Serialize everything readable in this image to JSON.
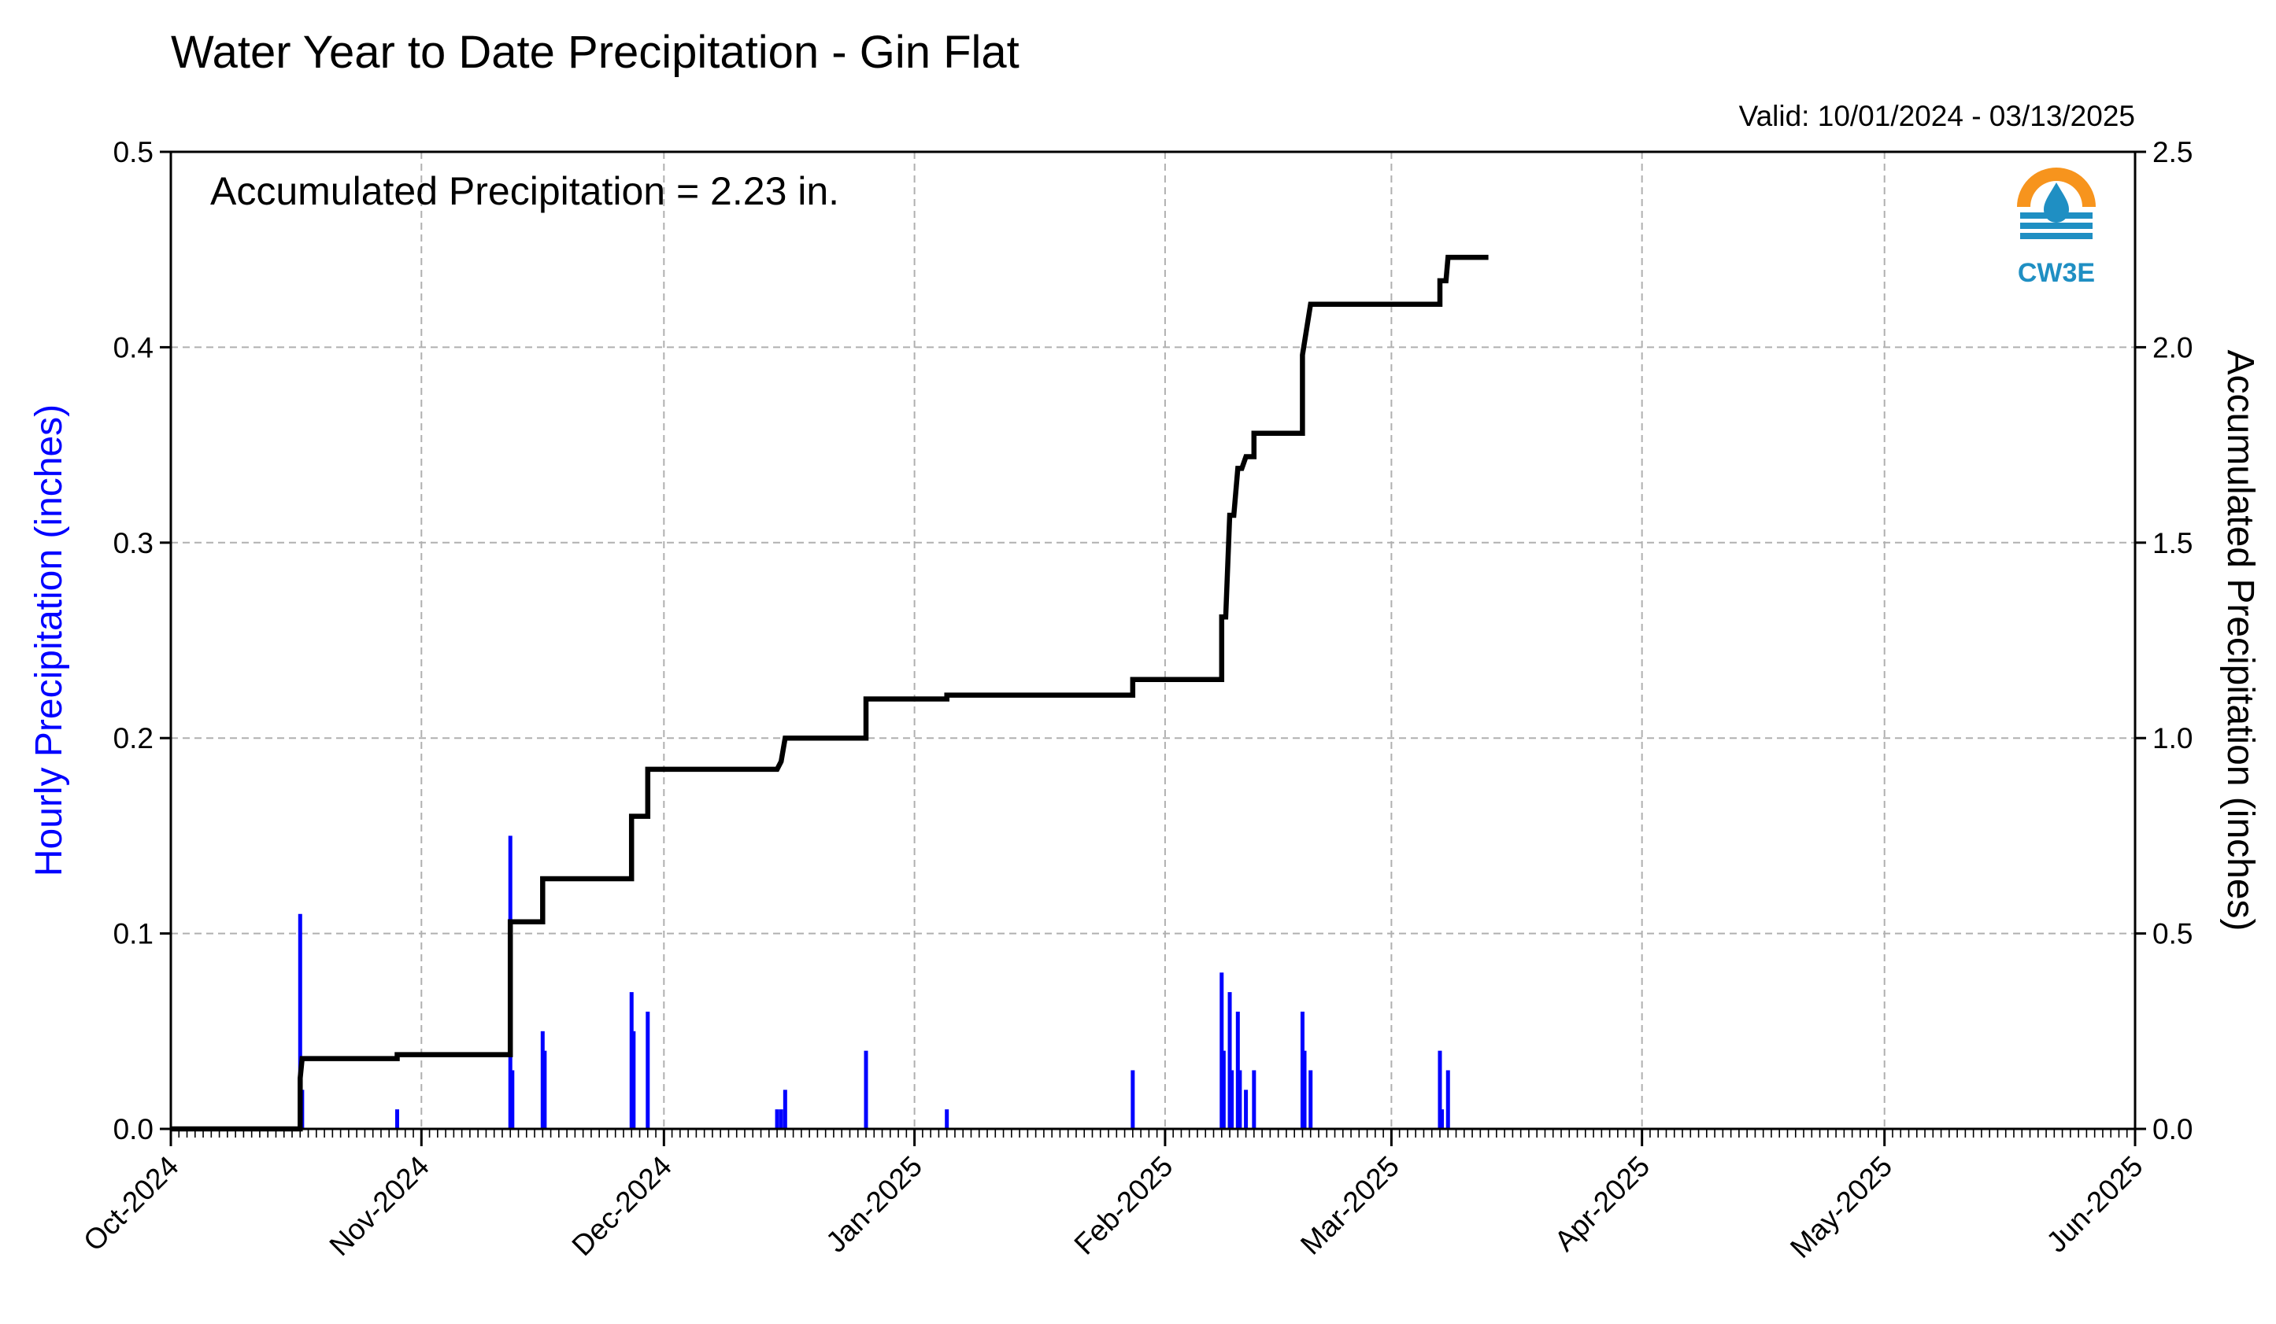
{
  "chart_data": {
    "type": "bar+line",
    "title": "Water Year to Date Precipitation - Gin Flat",
    "subtitle": "Valid: 10/01/2024 - 03/13/2025",
    "annotation": "Accumulated Precipitation = 2.23 in.",
    "logo_text": "CW3E",
    "ylabel_left": "Hourly Precipitation (inches)",
    "ylabel_right": "Accumulated Precipitation (inches)",
    "xlim": [
      "2024-10-01",
      "2025-06-01"
    ],
    "ylim_left": [
      0,
      0.5
    ],
    "ylim_right": [
      0,
      2.5
    ],
    "grid": true,
    "x_ticks": [
      "2024-10-01",
      "2024-11-01",
      "2024-12-01",
      "2025-01-01",
      "2025-02-01",
      "2025-03-01",
      "2025-04-01",
      "2025-05-01",
      "2025-06-01"
    ],
    "x_tick_labels": [
      "Oct-2024",
      "Nov-2024",
      "Dec-2024",
      "Jan-2025",
      "Feb-2025",
      "Mar-2025",
      "Apr-2025",
      "May-2025",
      "Jun-2025"
    ],
    "y_ticks_left": [
      "0.0",
      "0.1",
      "0.2",
      "0.3",
      "0.4",
      "0.5"
    ],
    "y_ticks_right": [
      "0.0",
      "0.5",
      "1.0",
      "1.5",
      "2.0",
      "2.5"
    ],
    "colors": {
      "hourly": "#0000ff",
      "accumulated": "#000000",
      "left_axis_label": "#0000ff"
    },
    "series": [
      {
        "name": "Hourly Precipitation",
        "kind": "bar",
        "axis": "left",
        "points": [
          [
            "2024-10-17",
            0.11
          ],
          [
            "2024-10-17T06",
            0.02
          ],
          [
            "2024-10-29",
            0.01
          ],
          [
            "2024-11-12",
            0.15
          ],
          [
            "2024-11-12T06",
            0.03
          ],
          [
            "2024-11-16",
            0.05
          ],
          [
            "2024-11-16T06",
            0.04
          ],
          [
            "2024-11-27",
            0.07
          ],
          [
            "2024-11-27T06",
            0.05
          ],
          [
            "2024-11-29",
            0.06
          ],
          [
            "2024-12-15",
            0.01
          ],
          [
            "2024-12-15T12",
            0.01
          ],
          [
            "2024-12-16",
            0.02
          ],
          [
            "2024-12-26",
            0.04
          ],
          [
            "2025-01-05",
            0.01
          ],
          [
            "2025-01-28",
            0.03
          ],
          [
            "2025-02-08",
            0.08
          ],
          [
            "2025-02-08T06",
            0.04
          ],
          [
            "2025-02-09",
            0.07
          ],
          [
            "2025-02-09T06",
            0.03
          ],
          [
            "2025-02-10",
            0.06
          ],
          [
            "2025-02-10T06",
            0.03
          ],
          [
            "2025-02-11",
            0.02
          ],
          [
            "2025-02-12",
            0.03
          ],
          [
            "2025-02-18",
            0.06
          ],
          [
            "2025-02-18T06",
            0.04
          ],
          [
            "2025-02-19",
            0.03
          ],
          [
            "2025-03-07",
            0.04
          ],
          [
            "2025-03-07T06",
            0.01
          ],
          [
            "2025-03-08",
            0.03
          ]
        ]
      },
      {
        "name": "Accumulated Precipitation",
        "kind": "step-line",
        "axis": "right",
        "points": [
          [
            "2024-10-01",
            0.0
          ],
          [
            "2024-10-17",
            0.0
          ],
          [
            "2024-10-17",
            0.13
          ],
          [
            "2024-10-17T06",
            0.18
          ],
          [
            "2024-10-29",
            0.18
          ],
          [
            "2024-10-29",
            0.19
          ],
          [
            "2024-11-12",
            0.19
          ],
          [
            "2024-11-12",
            0.53
          ],
          [
            "2024-11-12T06",
            0.53
          ],
          [
            "2024-11-16",
            0.53
          ],
          [
            "2024-11-16",
            0.64
          ],
          [
            "2024-11-27",
            0.64
          ],
          [
            "2024-11-27",
            0.8
          ],
          [
            "2024-11-29",
            0.8
          ],
          [
            "2024-11-29",
            0.92
          ],
          [
            "2024-12-15",
            0.92
          ],
          [
            "2024-12-15T12",
            0.94
          ],
          [
            "2024-12-16",
            1.0
          ],
          [
            "2024-12-26",
            1.0
          ],
          [
            "2024-12-26",
            1.1
          ],
          [
            "2025-01-05",
            1.1
          ],
          [
            "2025-01-05",
            1.11
          ],
          [
            "2025-01-28",
            1.11
          ],
          [
            "2025-01-28",
            1.15
          ],
          [
            "2025-02-08",
            1.15
          ],
          [
            "2025-02-08",
            1.31
          ],
          [
            "2025-02-08T12",
            1.31
          ],
          [
            "2025-02-09",
            1.57
          ],
          [
            "2025-02-09T12",
            1.57
          ],
          [
            "2025-02-10",
            1.69
          ],
          [
            "2025-02-10T12",
            1.69
          ],
          [
            "2025-02-11",
            1.72
          ],
          [
            "2025-02-12",
            1.72
          ],
          [
            "2025-02-12",
            1.78
          ],
          [
            "2025-02-18",
            1.78
          ],
          [
            "2025-02-18",
            1.98
          ],
          [
            "2025-02-19",
            2.11
          ],
          [
            "2025-03-07",
            2.11
          ],
          [
            "2025-03-07",
            2.17
          ],
          [
            "2025-03-07T18",
            2.17
          ],
          [
            "2025-03-08",
            2.23
          ],
          [
            "2025-03-13",
            2.23
          ]
        ]
      }
    ]
  }
}
